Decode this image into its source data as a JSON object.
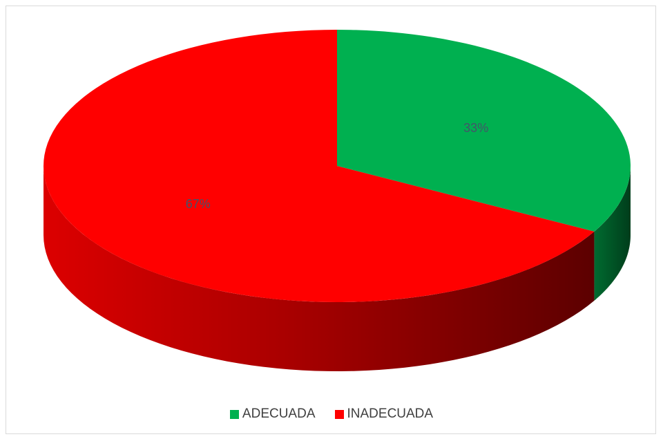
{
  "chart_data": {
    "type": "pie",
    "categories": [
      "ADECUADA",
      "INADECUADA"
    ],
    "values": [
      33,
      67
    ],
    "data_labels": [
      "33%",
      "67%"
    ],
    "colors": [
      "#00b050",
      "#ff0000"
    ],
    "style": "3d",
    "legend_position": "bottom"
  }
}
